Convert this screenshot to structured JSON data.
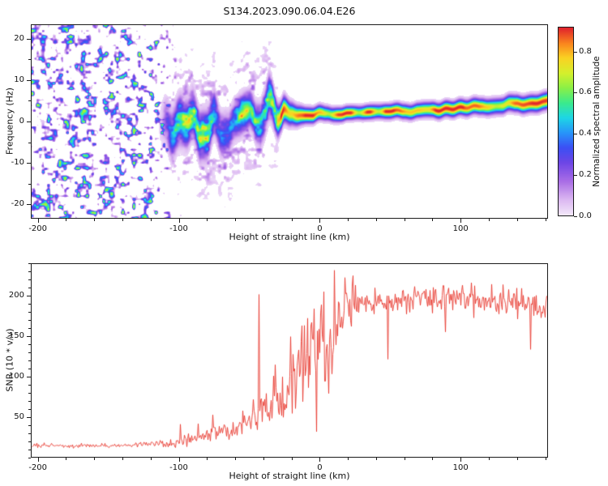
{
  "chart_data": [
    {
      "type": "heatmap",
      "title": "S134.2023.090.06.04.E26",
      "xlabel": "Height of straight line (km)",
      "ylabel": "Frequency (Hz)",
      "xlim": [
        -205,
        162
      ],
      "ylim": [
        -23.5,
        23.5
      ],
      "xticks": [
        -200,
        -100,
        0,
        100
      ],
      "xtick_labels": [
        "-200",
        "-100",
        "0",
        "100"
      ],
      "x_minor_step": 20,
      "yticks": [
        -20,
        -10,
        0,
        10,
        20
      ],
      "ytick_labels": [
        "-20",
        "-10",
        "0",
        "10",
        "20"
      ],
      "y_minor_step": 5,
      "colorbar": {
        "label": "Normalized spectral amplitude",
        "vmin": 0,
        "vmax": 0.92,
        "ticks": [
          0,
          0.2,
          0.4,
          0.6,
          0.8
        ],
        "tick_labels": [
          "0.0",
          "0.2",
          "0.4",
          "0.6",
          "0.8"
        ]
      },
      "colormap_stops": [
        [
          0.0,
          243,
          232,
          250
        ],
        [
          0.08,
          221,
          185,
          242
        ],
        [
          0.18,
          170,
          110,
          230
        ],
        [
          0.28,
          110,
          70,
          230
        ],
        [
          0.36,
          60,
          80,
          245
        ],
        [
          0.44,
          40,
          150,
          250
        ],
        [
          0.52,
          30,
          215,
          230
        ],
        [
          0.6,
          60,
          235,
          140
        ],
        [
          0.68,
          140,
          240,
          70
        ],
        [
          0.76,
          215,
          240,
          45
        ],
        [
          0.84,
          250,
          210,
          35
        ],
        [
          0.92,
          250,
          130,
          30
        ],
        [
          1.0,
          225,
          35,
          45
        ]
      ],
      "noise_region": {
        "x_full_until": -118,
        "x_fade_to": -94
      },
      "ridge": {
        "center": [
          [
            -205,
            0
          ],
          [
            -116,
            -1
          ],
          [
            -105,
            -2
          ],
          [
            -95,
            1.5
          ],
          [
            -85,
            -2.5
          ],
          [
            -75,
            0.5
          ],
          [
            -65,
            -2
          ],
          [
            -55,
            1
          ],
          [
            -47,
            2.5
          ],
          [
            -42,
            1
          ],
          [
            -36,
            6
          ],
          [
            -32,
            4
          ],
          [
            -27,
            1.2
          ],
          [
            -20,
            1.8
          ],
          [
            -5,
            1.8
          ],
          [
            30,
            2.1
          ],
          [
            60,
            2.5
          ],
          [
            90,
            3.0
          ],
          [
            115,
            3.6
          ],
          [
            135,
            4.2
          ],
          [
            150,
            4.5
          ],
          [
            162,
            5.2
          ]
        ],
        "width": [
          [
            -205,
            7
          ],
          [
            -116,
            7
          ],
          [
            -80,
            6.5
          ],
          [
            -50,
            5
          ],
          [
            -36,
            6.5
          ],
          [
            -28,
            4
          ],
          [
            -10,
            2.2
          ],
          [
            20,
            1.9
          ],
          [
            162,
            2.4
          ]
        ]
      }
    },
    {
      "type": "line",
      "xlabel": "Height of straight line (km)",
      "ylabel": "SNR (10 * v/v)",
      "color": "#e8392f",
      "xlim": [
        -205,
        162
      ],
      "ylim": [
        0,
        240
      ],
      "xticks": [
        -200,
        -100,
        0,
        100
      ],
      "xtick_labels": [
        "-200",
        "-100",
        "0",
        "100"
      ],
      "x_minor_step": 20,
      "yticks": [
        50,
        100,
        150,
        200
      ],
      "ytick_labels": [
        "50",
        "100",
        "150",
        "200"
      ],
      "y_minor_step": 10,
      "mean": [
        [
          -205,
          14
        ],
        [
          -150,
          14
        ],
        [
          -120,
          15
        ],
        [
          -100,
          18
        ],
        [
          -88,
          24
        ],
        [
          -75,
          30
        ],
        [
          -62,
          35
        ],
        [
          -52,
          45
        ],
        [
          -45,
          55
        ],
        [
          -38,
          60
        ],
        [
          -30,
          75
        ],
        [
          -24,
          90
        ],
        [
          -18,
          105
        ],
        [
          -12,
          125
        ],
        [
          -6,
          140
        ],
        [
          0,
          150
        ],
        [
          6,
          135
        ],
        [
          12,
          170
        ],
        [
          18,
          185
        ],
        [
          25,
          192
        ],
        [
          40,
          195
        ],
        [
          70,
          197
        ],
        [
          100,
          196
        ],
        [
          120,
          193
        ],
        [
          140,
          196
        ],
        [
          162,
          186
        ]
      ],
      "sigma": [
        [
          -205,
          4
        ],
        [
          -130,
          4
        ],
        [
          -100,
          9
        ],
        [
          -80,
          14
        ],
        [
          -60,
          18
        ],
        [
          -50,
          26
        ],
        [
          -40,
          45
        ],
        [
          -30,
          60
        ],
        [
          -20,
          75
        ],
        [
          -10,
          85
        ],
        [
          0,
          90
        ],
        [
          10,
          80
        ],
        [
          20,
          45
        ],
        [
          30,
          28
        ],
        [
          162,
          26
        ]
      ]
    }
  ]
}
